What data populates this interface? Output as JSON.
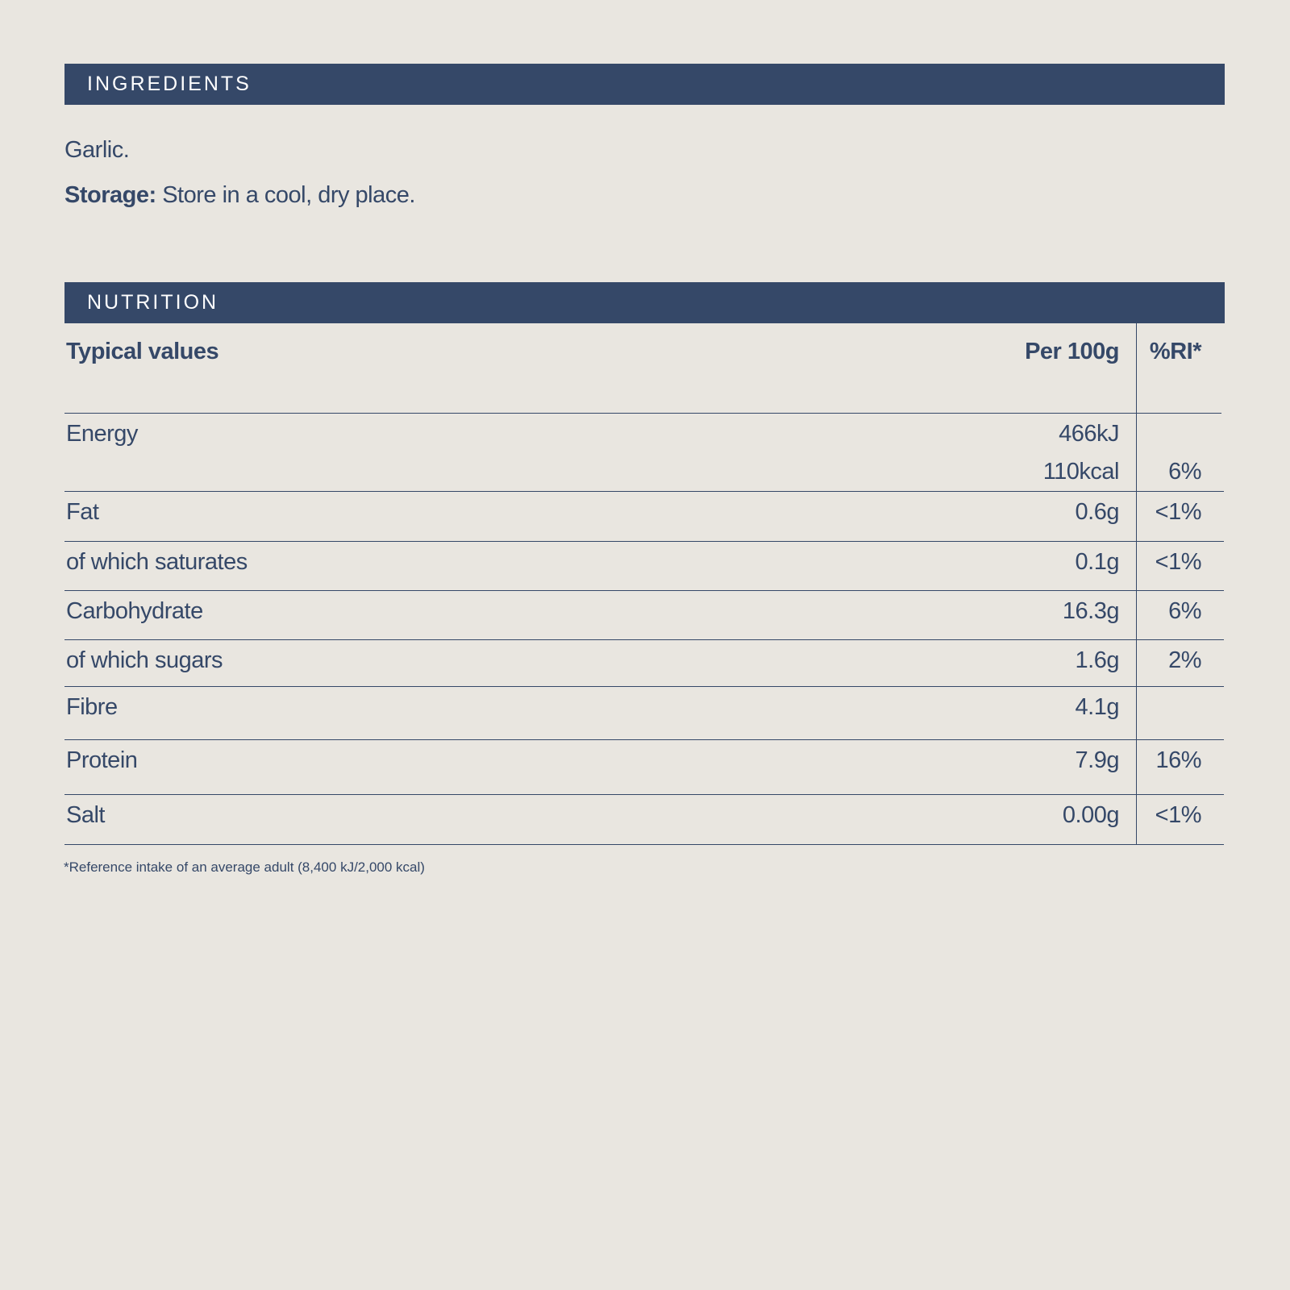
{
  "ingredients": {
    "heading": "INGREDIENTS",
    "text": "Garlic.",
    "storage_label": "Storage:",
    "storage_text": "Store in a cool, dry place."
  },
  "nutrition": {
    "heading": "NUTRITION",
    "columns": [
      "Typical values",
      "Per 100g",
      "%RI*"
    ],
    "rows": [
      {
        "name": "Energy",
        "per_100g": [
          "466kJ",
          "110kcal"
        ],
        "ri": "6%"
      },
      {
        "name": "Fat",
        "per_100g": [
          "0.6g"
        ],
        "ri": "<1%"
      },
      {
        "name": "of which saturates",
        "per_100g": [
          "0.1g"
        ],
        "ri": "<1%"
      },
      {
        "name": "Carbohydrate",
        "per_100g": [
          "16.3g"
        ],
        "ri": "6%"
      },
      {
        "name": "of which sugars",
        "per_100g": [
          "1.6g"
        ],
        "ri": "2%"
      },
      {
        "name": "Fibre",
        "per_100g": [
          "4.1g"
        ]
      },
      {
        "name": "Protein",
        "per_100g": [
          "7.9g"
        ],
        "ri": "16%"
      },
      {
        "name": "Salt",
        "per_100g": [
          "0.00g"
        ],
        "ri": "<1%"
      }
    ],
    "footnote": "*Reference intake of an average adult (8,400 kJ/2,000 kcal)"
  }
}
